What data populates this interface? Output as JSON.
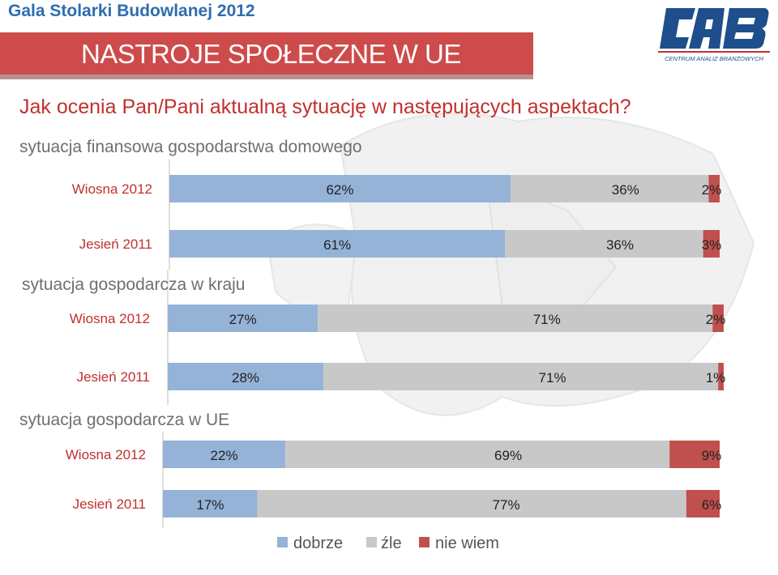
{
  "header": {
    "event": "Gala Stolarki Budowlanej 2012"
  },
  "title": "NASTROJE SPOŁECZNE W UE",
  "logo": {
    "letters": "CAB",
    "subtitle": "CENTRUM ANALIZ BRANŻOWYCH"
  },
  "question": "Jak ocenia Pan/Pani aktualną sytuację w następujących aspektach?",
  "colors": {
    "dobrze": "#95b3d7",
    "zle": "#c8c8c8",
    "nie_wiem": "#c0504d",
    "title_band": "#cd4b4b",
    "brand_blue": "#2e6dae"
  },
  "chart_data": {
    "type": "bar",
    "orientation": "horizontal",
    "stacked": true,
    "grid": false,
    "legend_position": "bottom",
    "xlim": [
      0,
      100
    ],
    "series": [
      {
        "name": "dobrze",
        "color": "#95b3d7"
      },
      {
        "name": "źle",
        "color": "#c8c8c8"
      },
      {
        "name": "nie wiem",
        "color": "#c0504d"
      }
    ],
    "groups": [
      {
        "title": "sytuacja finansowa gospodarstwa domowego",
        "rows": [
          {
            "label": "Wiosna 2012",
            "values": [
              62,
              36,
              2
            ],
            "labels": [
              "62%",
              "36%",
              "2%"
            ]
          },
          {
            "label": "Jesień 2011",
            "values": [
              61,
              36,
              3
            ],
            "labels": [
              "61%",
              "36%",
              "3%"
            ]
          }
        ]
      },
      {
        "title": "sytuacja gospodarcza w kraju",
        "rows": [
          {
            "label": "Wiosna 2012",
            "values": [
              27,
              71,
              2
            ],
            "labels": [
              "27%",
              "71%",
              "2%"
            ]
          },
          {
            "label": "Jesień 2011",
            "values": [
              28,
              71,
              1
            ],
            "labels": [
              "28%",
              "71%",
              "1%"
            ]
          }
        ]
      },
      {
        "title": "sytuacja gospodarcza w UE",
        "rows": [
          {
            "label": "Wiosna 2012",
            "values": [
              22,
              69,
              9
            ],
            "labels": [
              "22%",
              "69%",
              "9%"
            ]
          },
          {
            "label": "Jesień 2011",
            "values": [
              17,
              77,
              6
            ],
            "labels": [
              "17%",
              "77%",
              "6%"
            ]
          }
        ]
      }
    ]
  }
}
